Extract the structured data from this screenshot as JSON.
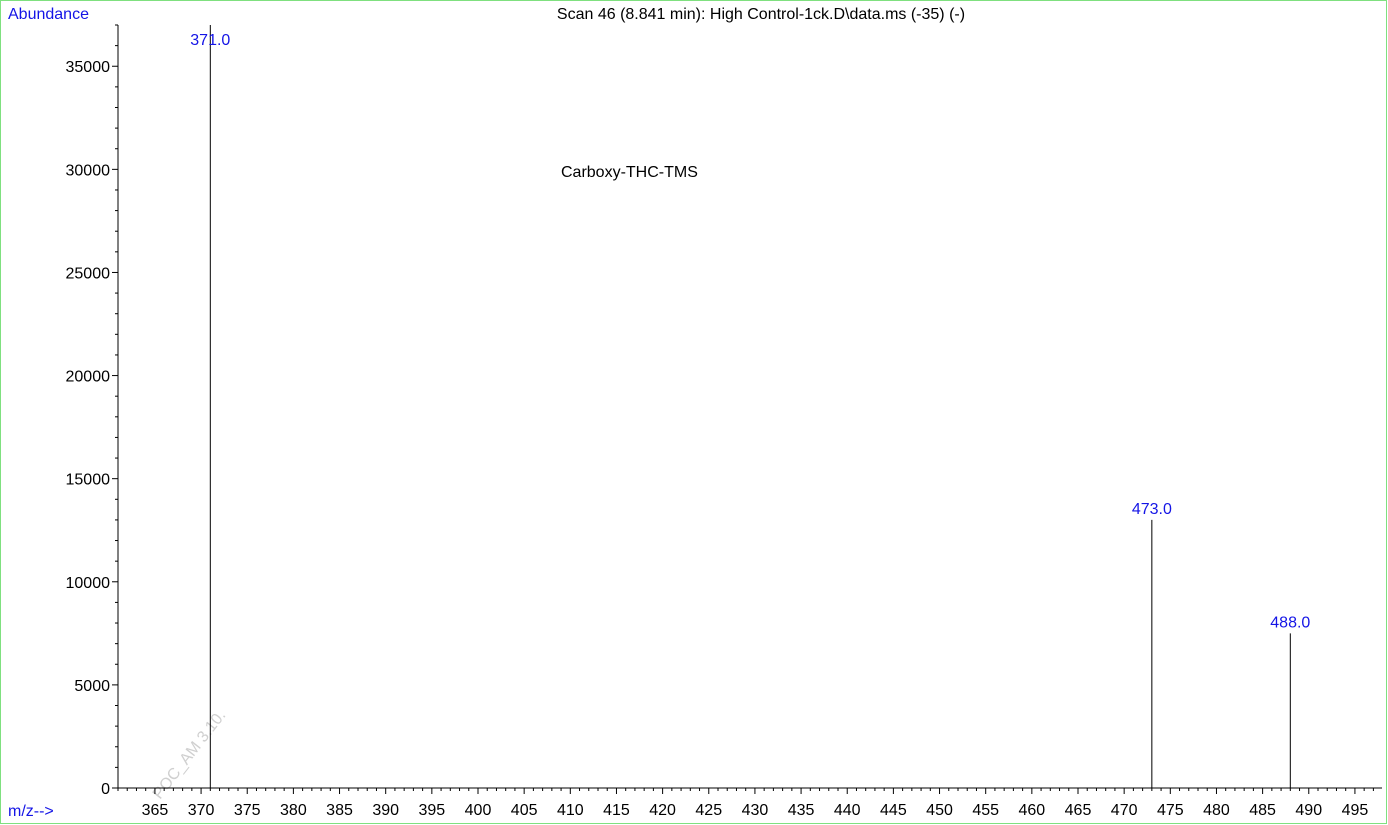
{
  "chart_data": {
    "type": "bar",
    "title": "Scan 46 (8.841 min): High Control-1ck.D\\data.ms (-35) (-)",
    "ylabel": "Abundance",
    "xlabel": "m/z-->",
    "annotation": "Carboxy-THC-TMS",
    "watermark": "POC_AM 3.10.",
    "x_ticks": [
      365,
      370,
      375,
      380,
      385,
      390,
      395,
      400,
      405,
      410,
      415,
      420,
      425,
      430,
      435,
      440,
      445,
      450,
      455,
      460,
      465,
      470,
      475,
      480,
      485,
      490,
      495
    ],
    "y_ticks": [
      0,
      5000,
      10000,
      15000,
      20000,
      25000,
      30000,
      35000
    ],
    "xlim": [
      361,
      497.5
    ],
    "ylim": [
      0,
      37000
    ],
    "peaks": [
      {
        "mz": 371.0,
        "abundance": 37000,
        "label": "371.0"
      },
      {
        "mz": 473.0,
        "abundance": 13000,
        "label": "473.0"
      },
      {
        "mz": 488.0,
        "abundance": 7500,
        "label": "488.0"
      }
    ],
    "colors": {
      "axis": "#000000",
      "labels": "#1414e6",
      "frame": "#7fe07f",
      "watermark": "#c8c8c8"
    }
  }
}
